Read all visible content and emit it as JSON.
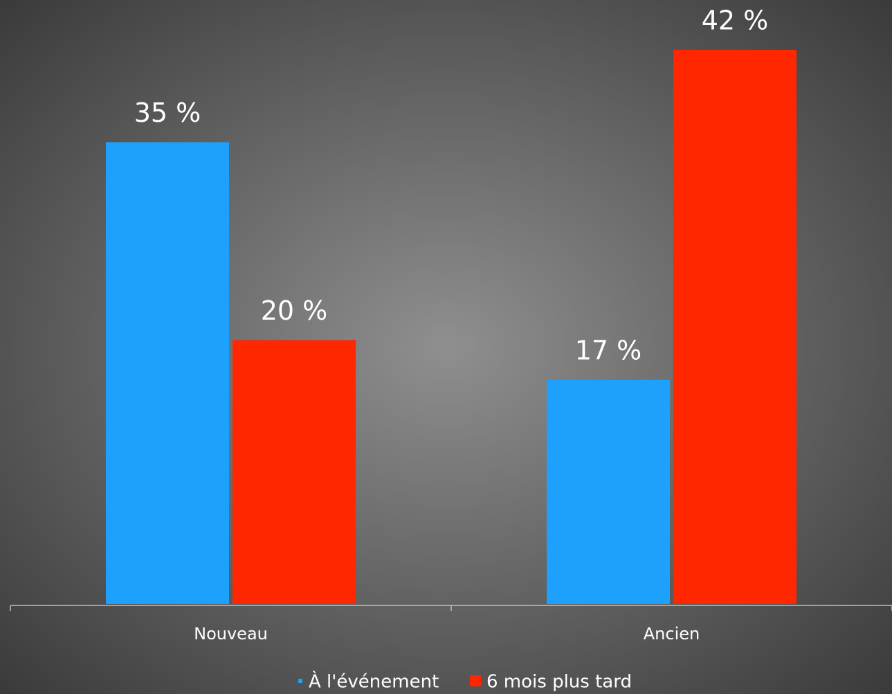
{
  "chart_data": {
    "type": "bar",
    "categories": [
      "Nouveau",
      "Ancien"
    ],
    "series": [
      {
        "name": "À l'événement",
        "color": "#1ea1fc",
        "values": [
          35,
          17
        ],
        "value_labels": [
          "35 %",
          "17 %"
        ]
      },
      {
        "name": "6 mois plus tard",
        "color": "#ff2700",
        "values": [
          20,
          42
        ],
        "value_labels": [
          "20 %",
          "42 %"
        ]
      }
    ],
    "legend": "bottom"
  }
}
